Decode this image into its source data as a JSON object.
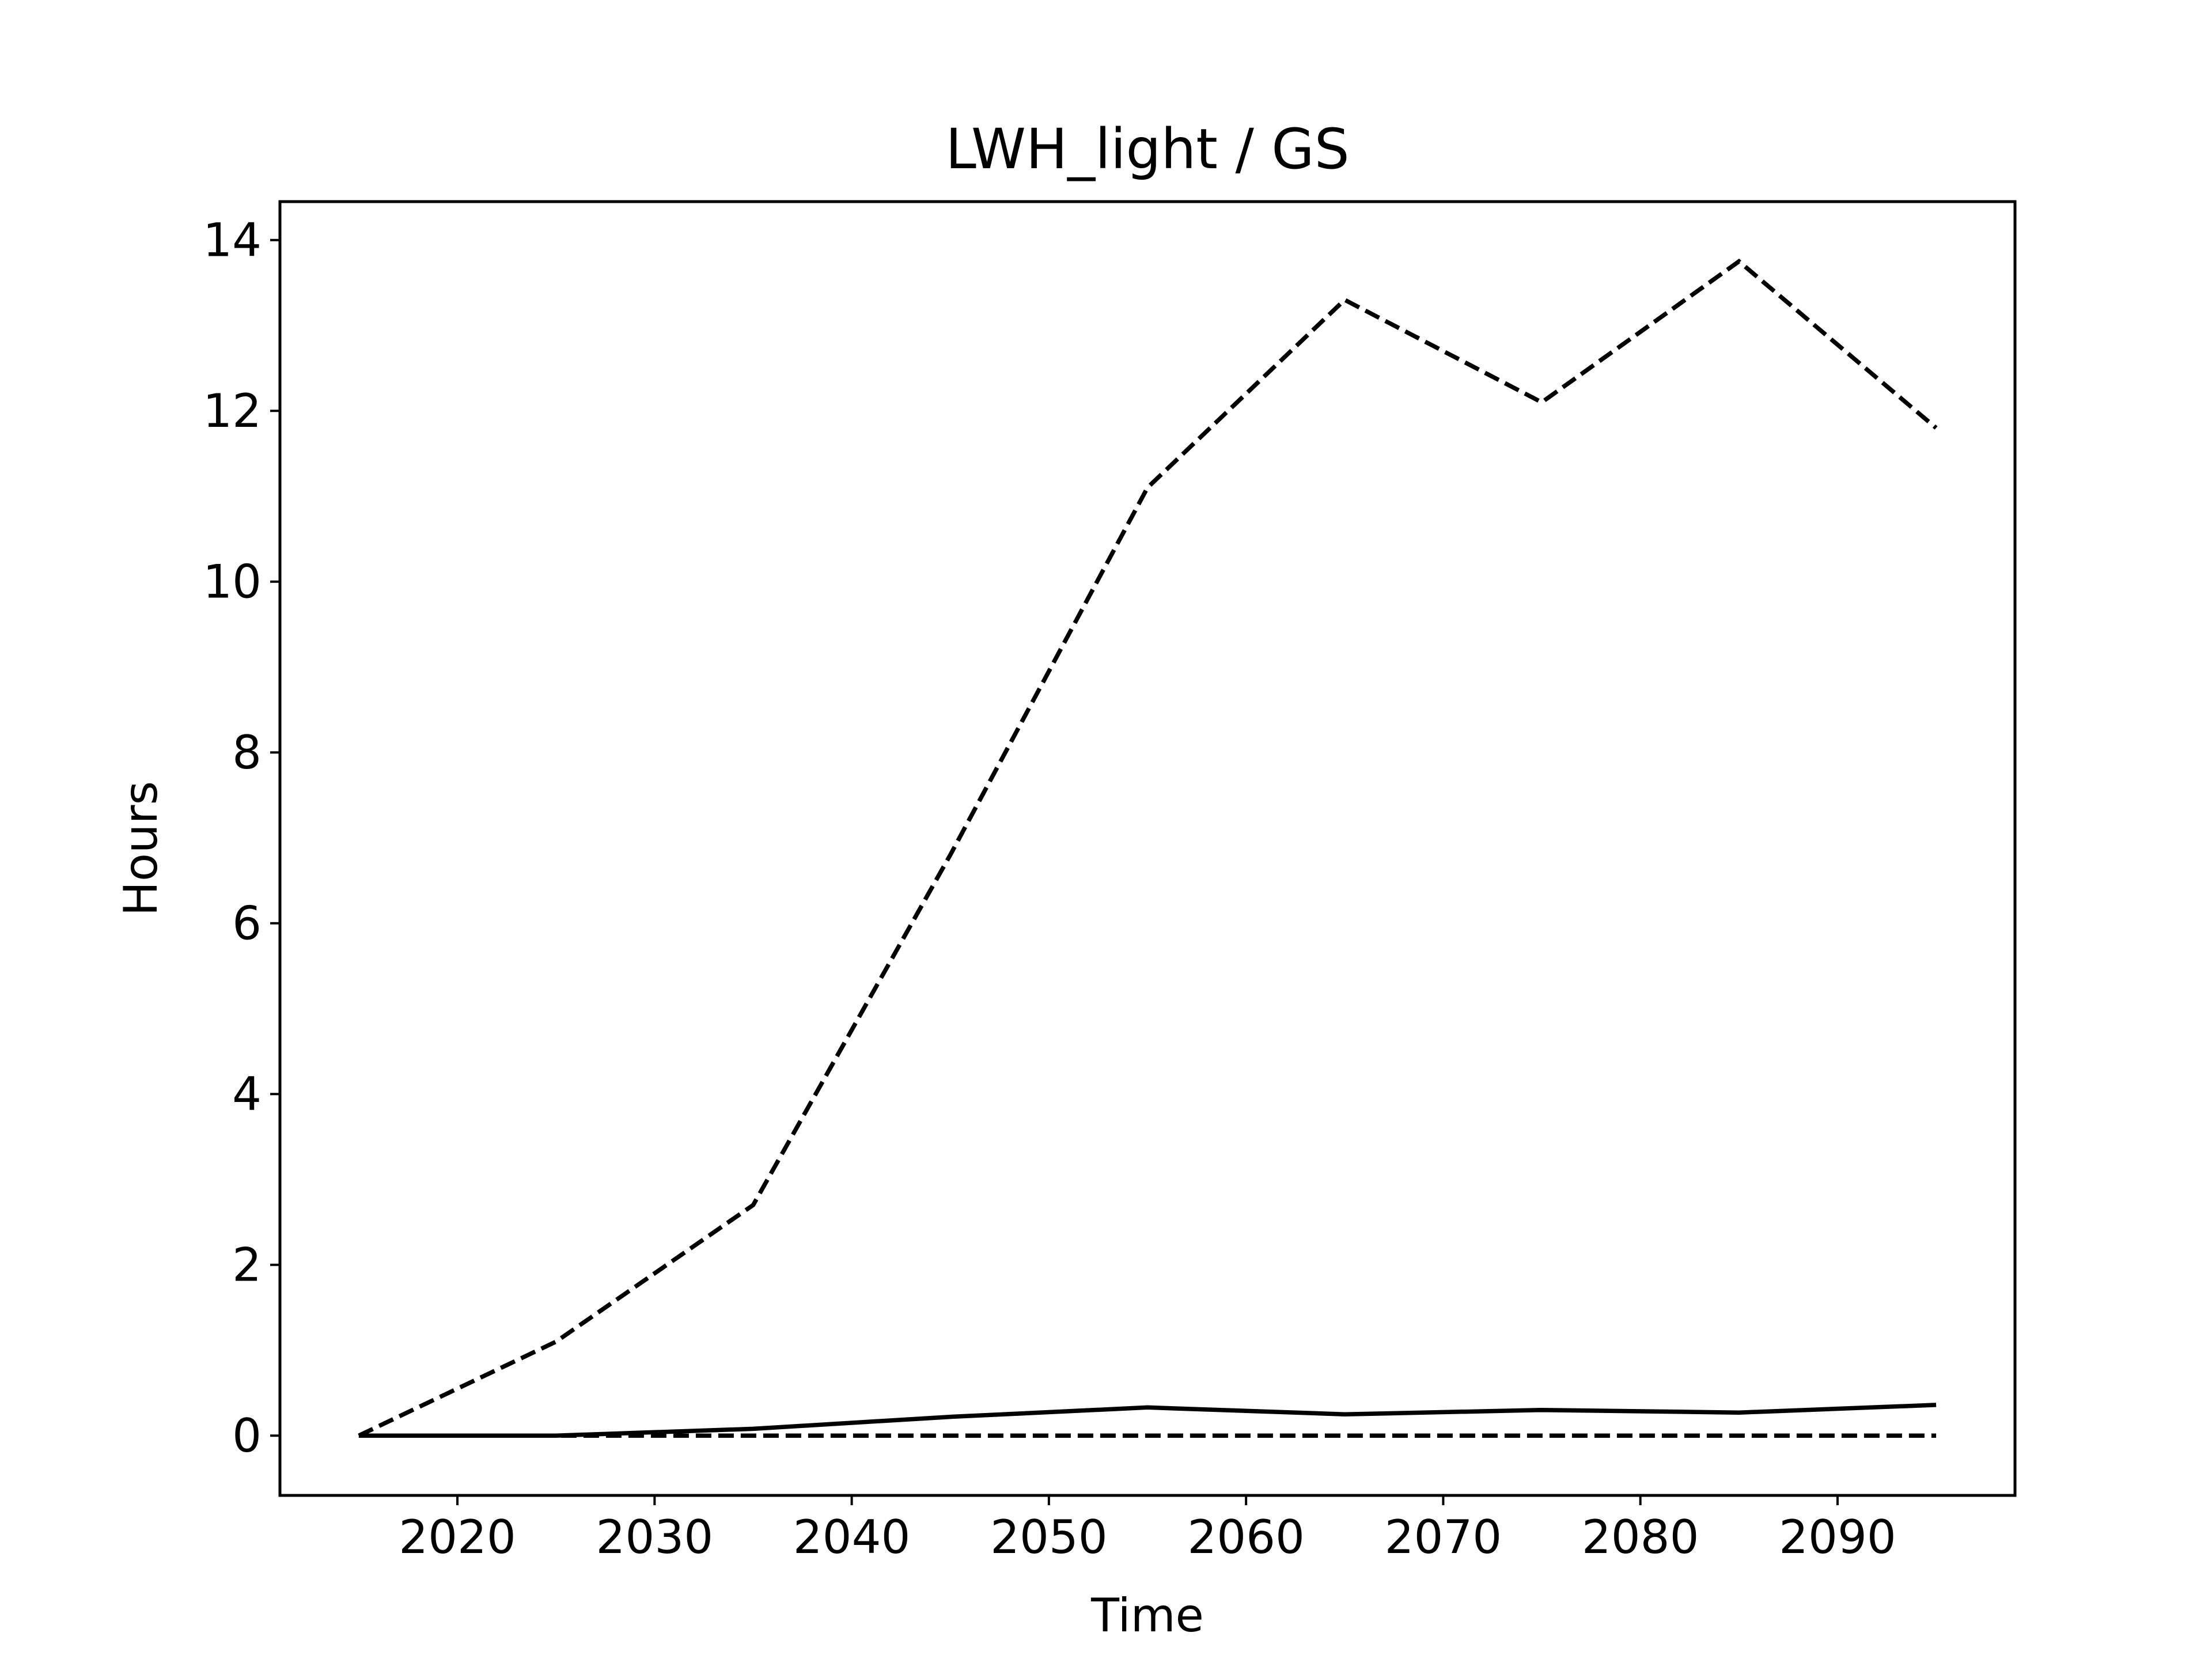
{
  "chart_data": {
    "type": "line",
    "title": "LWH_light / GS",
    "xlabel": "Time",
    "ylabel": "Hours",
    "xlim": [
      2011,
      2099
    ],
    "ylim": [
      -0.7,
      14.45
    ],
    "grid": false,
    "x": [
      2015,
      2025,
      2035,
      2045,
      2055,
      2065,
      2075,
      2085,
      2095
    ],
    "x_ticks": [
      2020,
      2030,
      2040,
      2050,
      2060,
      2070,
      2080,
      2090
    ],
    "y_ticks": [
      0,
      2,
      4,
      6,
      8,
      10,
      12,
      14
    ],
    "series": [
      {
        "style": "dashed",
        "color": "#000000",
        "values": [
          0.0,
          1.1,
          2.7,
          6.8,
          11.1,
          13.3,
          12.1,
          13.75,
          11.8
        ]
      },
      {
        "style": "solid",
        "color": "#000000",
        "values": [
          0.0,
          0.0,
          0.08,
          0.22,
          0.33,
          0.25,
          0.3,
          0.27,
          0.36
        ]
      },
      {
        "style": "dashed",
        "color": "#000000",
        "values": [
          0.0,
          0.0,
          0.0,
          0.0,
          0.0,
          0.0,
          0.0,
          0.0,
          0.0
        ]
      }
    ]
  }
}
